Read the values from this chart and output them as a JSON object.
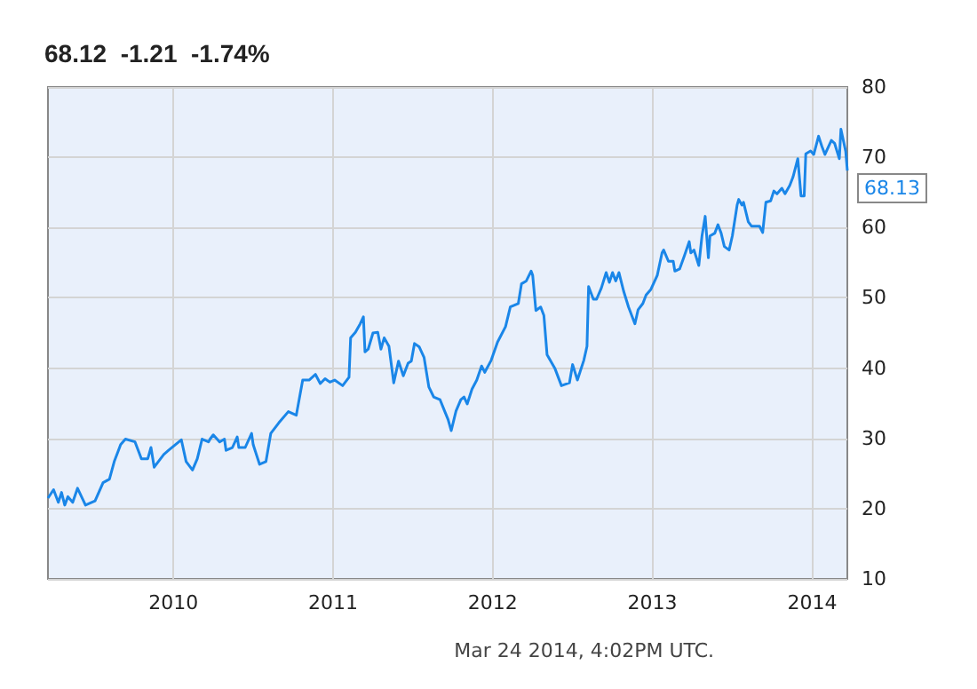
{
  "chart_data": {
    "type": "line",
    "title": "68.12  -1.21  -1.74%",
    "x": [
      2009.215,
      2009.25,
      2009.28,
      2009.3,
      2009.32,
      2009.34,
      2009.37,
      2009.4,
      2009.45,
      2009.51,
      2009.56,
      2009.6,
      2009.63,
      2009.67,
      2009.7,
      2009.76,
      2009.8,
      2009.84,
      2009.86,
      2009.88,
      2009.94,
      2009.97,
      2010.05,
      2010.08,
      2010.12,
      2010.15,
      2010.18,
      2010.22,
      2010.23,
      2010.25,
      2010.29,
      2010.32,
      2010.33,
      2010.37,
      2010.4,
      2010.41,
      2010.45,
      2010.49,
      2010.5,
      2010.54,
      2010.58,
      2010.61,
      2010.66,
      2010.72,
      2010.77,
      2010.81,
      2010.85,
      2010.89,
      2010.92,
      2010.95,
      2010.98,
      2011.01,
      2011.06,
      2011.1,
      2011.11,
      2011.14,
      2011.17,
      2011.19,
      2011.2,
      2011.22,
      2011.25,
      2011.28,
      2011.3,
      2011.32,
      2011.35,
      2011.38,
      2011.41,
      2011.44,
      2011.47,
      2011.49,
      2011.51,
      2011.54,
      2011.57,
      2011.6,
      2011.63,
      2011.67,
      2011.7,
      2011.72,
      2011.74,
      2011.77,
      2011.8,
      2011.82,
      2011.84,
      2011.87,
      2011.9,
      2011.93,
      2011.95,
      2011.99,
      2012.03,
      2012.08,
      2012.11,
      2012.16,
      2012.18,
      2012.21,
      2012.24,
      2012.25,
      2012.27,
      2012.3,
      2012.32,
      2012.34,
      2012.39,
      2012.43,
      2012.48,
      2012.5,
      2012.53,
      2012.57,
      2012.59,
      2012.6,
      2012.63,
      2012.65,
      2012.68,
      2012.71,
      2012.73,
      2012.75,
      2012.77,
      2012.79,
      2012.82,
      2012.85,
      2012.89,
      2012.91,
      2012.94,
      2012.96,
      2012.99,
      2013.03,
      2013.06,
      2013.07,
      2013.1,
      2013.13,
      2013.14,
      2013.17,
      2013.2,
      2013.23,
      2013.24,
      2013.26,
      2013.29,
      2013.31,
      2013.33,
      2013.35,
      2013.36,
      2013.39,
      2013.41,
      2013.43,
      2013.45,
      2013.48,
      2013.5,
      2013.53,
      2013.54,
      2013.56,
      2013.57,
      2013.6,
      2013.62,
      2013.67,
      2013.69,
      2013.71,
      2013.74,
      2013.76,
      2013.78,
      2013.81,
      2013.83,
      2013.86,
      2013.88,
      2013.91,
      2013.93,
      2013.95,
      2013.96,
      2013.99,
      2014.01,
      2014.04,
      2014.06,
      2014.08,
      2014.12,
      2014.14,
      2014.17,
      2014.18,
      2014.21,
      2014.22
    ],
    "series": [
      {
        "color": "#1a86e8",
        "values": [
          21.5,
          22.7,
          20.9,
          22.3,
          20.5,
          21.7,
          20.9,
          22.9,
          20.5,
          21.1,
          23.7,
          24.2,
          26.7,
          29.1,
          29.9,
          29.5,
          27.1,
          27.1,
          28.7,
          25.9,
          27.7,
          28.3,
          29.8,
          26.7,
          25.5,
          27.1,
          29.9,
          29.5,
          29.9,
          30.5,
          29.5,
          29.9,
          28.3,
          28.7,
          30.2,
          28.7,
          28.7,
          30.7,
          29.1,
          26.3,
          26.7,
          30.7,
          32.2,
          33.8,
          33.3,
          38.3,
          38.3,
          39.1,
          37.8,
          38.5,
          38.0,
          38.3,
          37.5,
          38.7,
          44.3,
          45.1,
          46.3,
          47.3,
          42.3,
          42.7,
          45.0,
          45.1,
          42.7,
          44.3,
          43.1,
          37.9,
          41.0,
          38.9,
          40.7,
          41.0,
          43.5,
          43.0,
          41.5,
          37.3,
          35.9,
          35.5,
          33.8,
          32.7,
          31.1,
          33.9,
          35.5,
          35.9,
          34.9,
          37.0,
          38.3,
          40.3,
          39.4,
          41.1,
          43.7,
          45.9,
          48.7,
          49.2,
          52.0,
          52.4,
          53.8,
          53.2,
          48.2,
          48.7,
          47.5,
          41.9,
          39.9,
          37.5,
          37.9,
          40.5,
          38.3,
          41.1,
          43.1,
          51.6,
          49.8,
          49.8,
          51.4,
          53.6,
          52.2,
          53.6,
          52.4,
          53.6,
          50.9,
          48.7,
          46.3,
          48.3,
          49.2,
          50.4,
          51.2,
          53.2,
          56.4,
          56.8,
          55.2,
          55.2,
          53.8,
          54.1,
          56.0,
          58.0,
          56.4,
          56.8,
          54.6,
          58.8,
          61.6,
          55.7,
          58.8,
          59.2,
          60.4,
          59.2,
          57.3,
          56.8,
          58.8,
          63.2,
          64.0,
          63.2,
          63.6,
          60.8,
          60.2,
          60.2,
          59.3,
          63.6,
          63.8,
          65.2,
          64.8,
          65.6,
          64.8,
          66.0,
          67.2,
          69.8,
          64.5,
          64.5,
          70.5,
          70.9,
          70.4,
          73.0,
          71.6,
          70.4,
          72.4,
          72.0,
          69.8,
          74.0,
          70.8,
          68.1
        ]
      }
    ],
    "xlim": [
      2009.215,
      2014.22
    ],
    "xticks": [
      2010,
      2011,
      2012,
      2013,
      2014
    ],
    "ylim": [
      10,
      80
    ],
    "yticks": [
      10,
      20,
      30,
      40,
      50,
      60,
      70,
      80
    ],
    "grid": true,
    "marker": "none",
    "line_style": "solid",
    "annotations": [
      {
        "text": "68.13",
        "x": 2014.22,
        "y": 68.13
      },
      "Mar 24 2014, 4:02PM UTC."
    ]
  }
}
